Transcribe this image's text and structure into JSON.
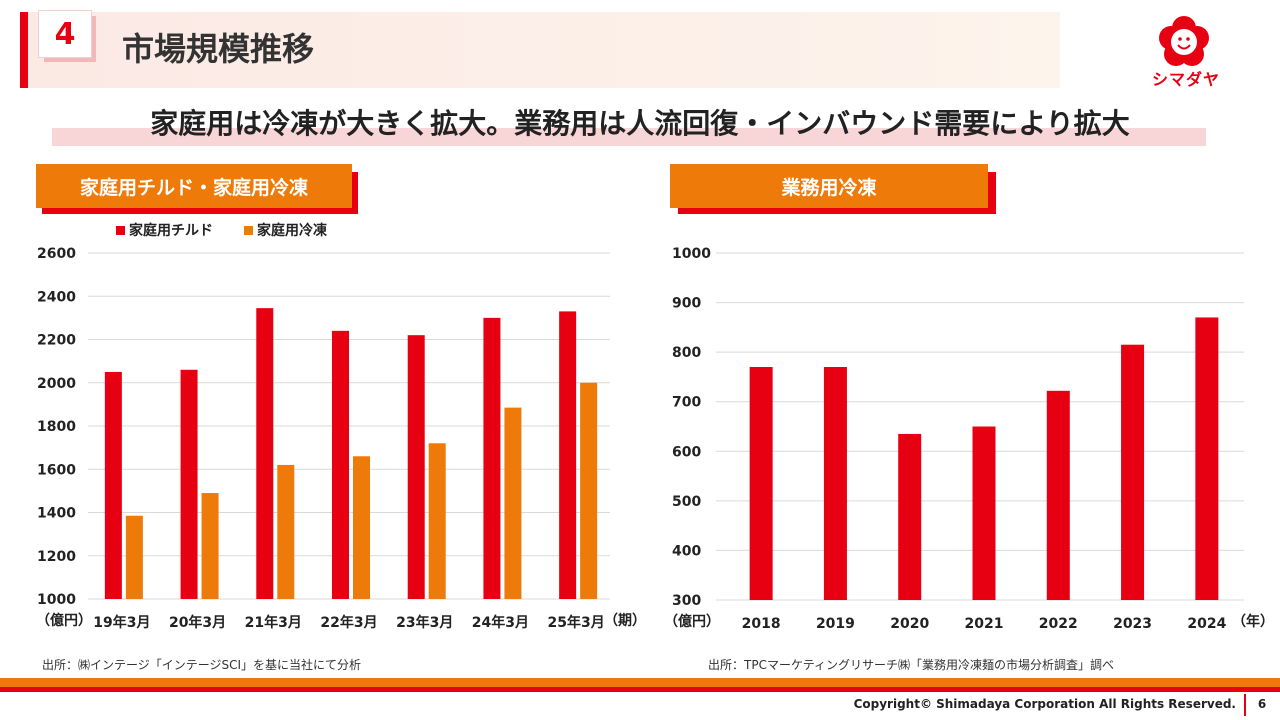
{
  "header": {
    "section_number": "4",
    "title": "市場規模推移",
    "logo_text": "シマダヤ"
  },
  "subtitle": "家庭用は冷凍が大きく拡大。業務用は人流回復・インバウンド需要により拡大",
  "colors": {
    "red": "#e60012",
    "orange": "#ee7a0a"
  },
  "charts": {
    "left_tag": "家庭用チルド・家庭用冷凍",
    "right_tag": "業務用冷凍"
  },
  "chart_data": [
    {
      "type": "bar",
      "title": "家庭用チルド・家庭用冷凍",
      "categories": [
        "19年3月",
        "20年3月",
        "21年3月",
        "22年3月",
        "23年3月",
        "24年3月",
        "25年3月"
      ],
      "series": [
        {
          "name": "家庭用チルド",
          "color": "#e60012",
          "values": [
            2050,
            2060,
            2345,
            2240,
            2220,
            2300,
            2330
          ]
        },
        {
          "name": "家庭用冷凍",
          "color": "#ee7a0a",
          "values": [
            1385,
            1490,
            1620,
            1660,
            1720,
            1885,
            2000
          ]
        }
      ],
      "ylim": [
        1000,
        2600
      ],
      "yticks": [
        1000,
        1200,
        1400,
        1600,
        1800,
        2000,
        2200,
        2400,
        2600
      ],
      "yunit": "（億円）",
      "xunit": "（期）",
      "legend_position": "top-left",
      "grid": true
    },
    {
      "type": "bar",
      "title": "業務用冷凍",
      "categories": [
        "2018",
        "2019",
        "2020",
        "2021",
        "2022",
        "2023",
        "2024"
      ],
      "series": [
        {
          "color": "#e60012",
          "values": [
            770,
            770,
            635,
            650,
            722,
            815,
            870
          ]
        }
      ],
      "ylim": [
        300,
        1000
      ],
      "yticks": [
        300,
        400,
        500,
        600,
        700,
        800,
        900,
        1000
      ],
      "yunit": "（億円）",
      "xunit": "（年）",
      "grid": true
    }
  ],
  "sources": {
    "left": "出所：㈱インテージ「インテージSCI」を基に当社にて分析",
    "right": "出所：TPCマーケティングリサーチ㈱「業務用冷凍麺の市場分析調査」調べ"
  },
  "footer": {
    "copyright": "Copyright© Shimadaya Corporation All Rights Reserved.",
    "page": "6"
  }
}
